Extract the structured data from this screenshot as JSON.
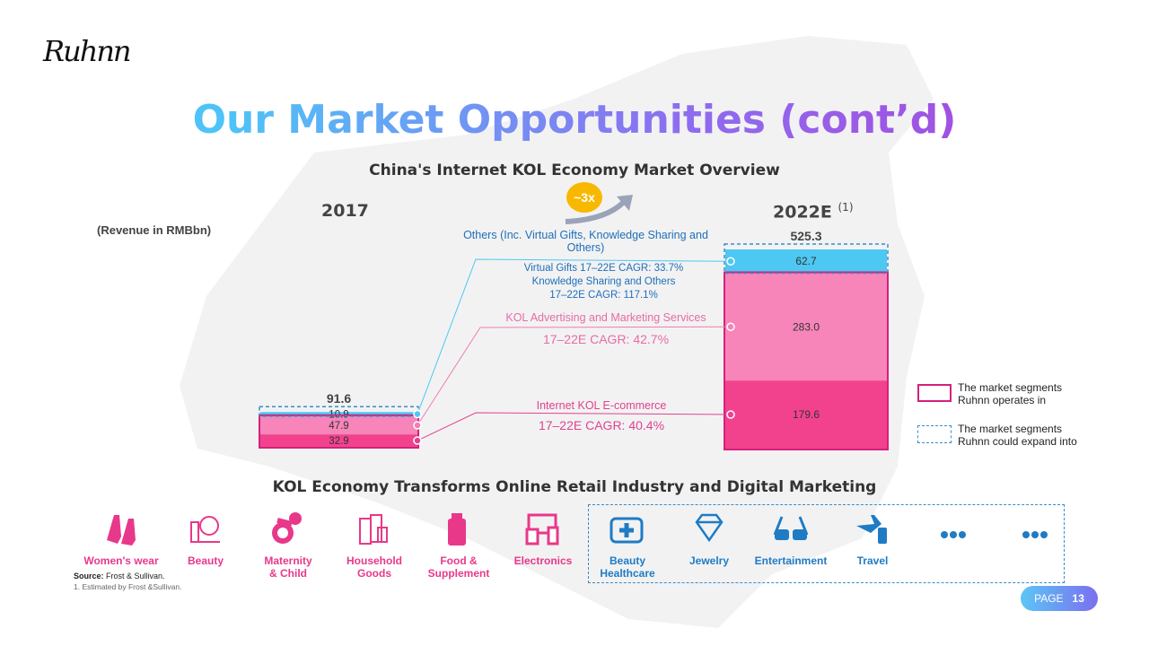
{
  "logo": "Ruhnn",
  "title": "Our Market Opportunities (cont’d)",
  "chart_title": "China's Internet KOL Economy Market Overview",
  "unit_note": "(Revenue in RMBbn)",
  "growth_badge": "~3x",
  "chart_data": {
    "type": "bar",
    "stacked": true,
    "title": "China's Internet KOL Economy Market Overview",
    "ylabel": "Revenue in RMBbn",
    "categories": [
      "2017",
      "2022E"
    ],
    "category_labels": [
      "2017",
      "2022E"
    ],
    "footnote_marker": "(1)",
    "totals": [
      91.6,
      525.3
    ],
    "series": [
      {
        "name": "Internet KOL E-commerce",
        "values": [
          32.9,
          179.6
        ],
        "color": "#f2428e",
        "cagr": "17–22E CAGR: 40.4%"
      },
      {
        "name": "KOL Advertising and Marketing Services",
        "values": [
          47.9,
          283.0
        ],
        "color": "#f785b9",
        "cagr": "17–22E CAGR: 42.7%"
      },
      {
        "name": "Others (Inc. Virtual Gifts, Knowledge Sharing and Others)",
        "values": [
          10.9,
          62.7
        ],
        "color": "#4dc8f2",
        "cagr": "Virtual Gifts 17–22E CAGR: 33.7%",
        "cagr2": "Knowledge Sharing and Others",
        "cagr3": "17–22E CAGR: 117.1%"
      }
    ],
    "value_labels": [
      [
        "32.9",
        "47.9",
        "10.9"
      ],
      [
        "179.6",
        "283.0",
        "62.7"
      ]
    ],
    "total_labels": [
      "91.6",
      "525.3"
    ]
  },
  "legend": [
    {
      "text1": "The market segments",
      "text2": "Ruhnn operates in",
      "style": "solid",
      "color": "#d6207a"
    },
    {
      "text1": "The market segments",
      "text2": "Ruhnn could expand into",
      "style": "dashed",
      "color": "#3a8cc9"
    }
  ],
  "section_title": "KOL Economy Transforms Online Retail Industry and Digital Marketing",
  "categories_current": [
    {
      "l1": "Women's wear",
      "l2": "",
      "icon": "high-heels-icon"
    },
    {
      "l1": "Beauty",
      "l2": "",
      "icon": "makeup-icon"
    },
    {
      "l1": "Maternity",
      "l2": "& Child",
      "icon": "pacifier-icon"
    },
    {
      "l1": "Household",
      "l2": "Goods",
      "icon": "household-icon"
    },
    {
      "l1": "Food &",
      "l2": "Supplement",
      "icon": "supplement-bottle-icon"
    },
    {
      "l1": "Electronics",
      "l2": "",
      "icon": "devices-icon"
    }
  ],
  "categories_expand": [
    {
      "l1": "Beauty",
      "l2": "Healthcare",
      "icon": "medical-kit-icon"
    },
    {
      "l1": "Jewelry",
      "l2": "",
      "icon": "diamond-icon"
    },
    {
      "l1": "Entertainment",
      "l2": "",
      "icon": "3d-glasses-icon"
    },
    {
      "l1": "Travel",
      "l2": "",
      "icon": "plane-luggage-icon"
    },
    {
      "l1": "",
      "l2": "",
      "icon": "more-icon"
    },
    {
      "l1": "",
      "l2": "",
      "icon": "more-icon"
    }
  ],
  "source_label": "Source:",
  "source_text": " Frost & Sullivan.",
  "footnote": "1. Estimated by Frost &Sullivan.",
  "page": {
    "label": "PAGE",
    "number": "13"
  },
  "colors": {
    "pink": "#e8388a",
    "blue": "#1f7bc4"
  }
}
